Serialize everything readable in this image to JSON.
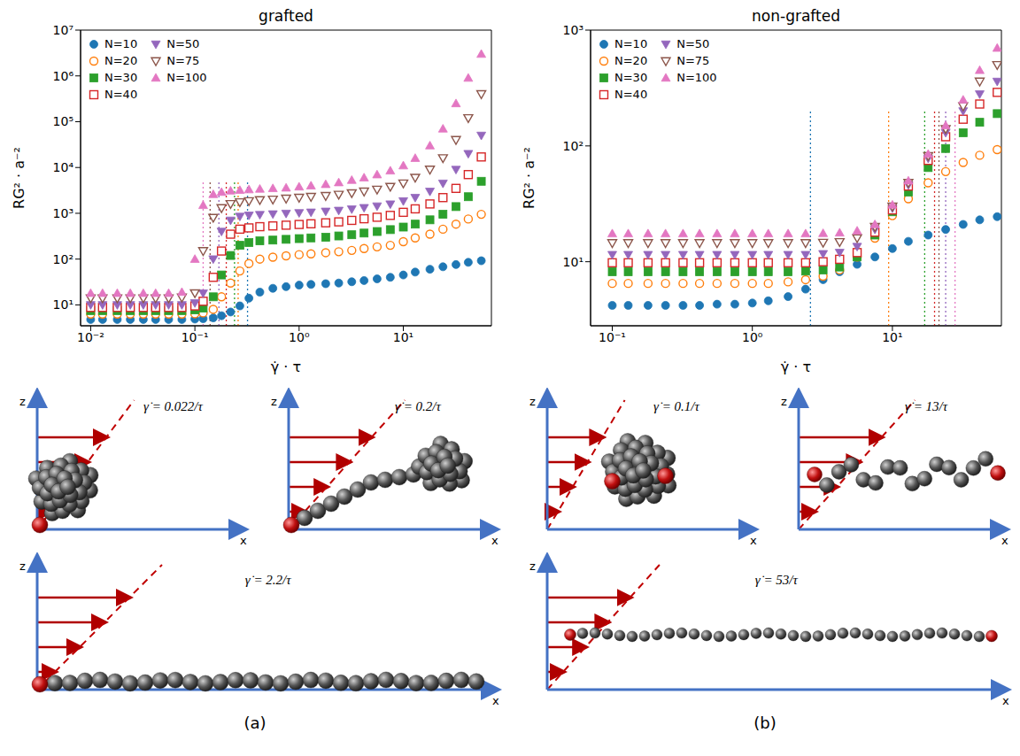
{
  "chart_data": [
    {
      "type": "scatter",
      "title": "grafted",
      "x_label": "γ̇ · τ",
      "y_label": "RG² · a⁻²",
      "log": true,
      "legend": "upper left",
      "xlim": [
        0.008,
        70
      ],
      "ylim": [
        3.5,
        10000000
      ],
      "xticks": [
        {
          "value": 0.01,
          "label": "10⁻²"
        },
        {
          "value": 0.1,
          "label": "10⁻¹"
        },
        {
          "value": 1,
          "label": "10⁰"
        },
        {
          "value": 10,
          "label": "10¹"
        }
      ],
      "yticks": [
        {
          "value": 10,
          "label": "10¹"
        },
        {
          "value": 100,
          "label": "10²"
        },
        {
          "value": 1000,
          "label": "10³"
        },
        {
          "value": 10000,
          "label": "10⁴"
        },
        {
          "value": 100000,
          "label": "10⁵"
        },
        {
          "value": 1000000,
          "label": "10⁶"
        },
        {
          "value": 10000000,
          "label": "10⁷"
        }
      ],
      "critical_line_range": [
        3.5,
        5000
      ],
      "x": [
        0.01,
        0.013,
        0.018,
        0.024,
        0.032,
        0.042,
        0.056,
        0.075,
        0.1,
        0.12,
        0.15,
        0.18,
        0.22,
        0.27,
        0.33,
        0.42,
        0.56,
        0.75,
        1,
        1.3,
        1.8,
        2.4,
        3.2,
        4.2,
        5.6,
        7.5,
        10,
        13,
        18,
        24,
        32,
        42,
        56
      ],
      "series": [
        {
          "name": "N=10",
          "color": "#1f77b4",
          "marker": "circle",
          "critical_rate": 0.32,
          "values": [
            4.8,
            4.8,
            4.8,
            4.8,
            4.8,
            4.8,
            4.8,
            4.8,
            4.9,
            5,
            5.2,
            5.8,
            7,
            9.5,
            14,
            19,
            23,
            25,
            27,
            28,
            29,
            30,
            32,
            34,
            37,
            40,
            45,
            52,
            60,
            68,
            76,
            85,
            92
          ]
        },
        {
          "name": "N=20",
          "color": "#ff7f0e",
          "marker": "circle_open",
          "critical_rate": 0.26,
          "values": [
            6.3,
            6.3,
            6.3,
            6.3,
            6.3,
            6.3,
            6.3,
            6.3,
            6.4,
            6.7,
            8,
            15,
            30,
            55,
            80,
            100,
            110,
            118,
            125,
            130,
            138,
            145,
            155,
            170,
            185,
            200,
            240,
            290,
            350,
            450,
            580,
            750,
            950
          ]
        },
        {
          "name": "N=30",
          "color": "#2ca02c",
          "marker": "square",
          "critical_rate": 0.24,
          "values": [
            7.5,
            7.5,
            7.5,
            7.5,
            7.5,
            7.5,
            7.5,
            7.5,
            7.8,
            8.5,
            15,
            45,
            120,
            200,
            230,
            250,
            260,
            270,
            280,
            290,
            300,
            320,
            340,
            370,
            400,
            440,
            500,
            580,
            720,
            950,
            1400,
            2300,
            5000
          ]
        },
        {
          "name": "N=40",
          "color": "#d62728",
          "marker": "square_open",
          "critical_rate": 0.2,
          "values": [
            8.8,
            8.8,
            8.8,
            8.8,
            8.8,
            8.8,
            8.8,
            8.8,
            9.5,
            12,
            40,
            150,
            350,
            450,
            480,
            510,
            530,
            550,
            570,
            590,
            620,
            650,
            700,
            760,
            820,
            900,
            1050,
            1250,
            1600,
            2200,
            3500,
            7000,
            17000
          ]
        },
        {
          "name": "N=50",
          "color": "#9467bd",
          "marker": "triangle_down",
          "critical_rate": 0.17,
          "values": [
            10,
            10,
            10,
            10,
            10,
            10,
            10,
            10,
            11,
            18,
            100,
            400,
            700,
            850,
            900,
            930,
            960,
            990,
            1020,
            1050,
            1100,
            1150,
            1230,
            1320,
            1430,
            1580,
            1850,
            2200,
            3000,
            4500,
            9000,
            20000,
            50000
          ]
        },
        {
          "name": "N=75",
          "color": "#8c564b",
          "marker": "triangle_down_open",
          "critical_rate": 0.14,
          "values": [
            14,
            14,
            14,
            14,
            14,
            14,
            14,
            14.5,
            18,
            150,
            800,
            1300,
            1600,
            1750,
            1850,
            1950,
            2000,
            2100,
            2200,
            2300,
            2400,
            2550,
            2750,
            3000,
            3300,
            3800,
            4500,
            6000,
            9000,
            16000,
            40000,
            120000,
            400000
          ]
        },
        {
          "name": "N=100",
          "color": "#e377c2",
          "marker": "triangle_up",
          "critical_rate": 0.12,
          "values": [
            18,
            18,
            18,
            18,
            18,
            18,
            18,
            19,
            100,
            1500,
            2600,
            2900,
            3100,
            3200,
            3300,
            3400,
            3500,
            3600,
            3800,
            4000,
            4300,
            4700,
            5300,
            6000,
            7000,
            8500,
            11000,
            16000,
            30000,
            70000,
            250000,
            900000,
            3000000
          ]
        }
      ]
    },
    {
      "type": "scatter",
      "title": "non-grafted",
      "x_label": "γ̇ · τ",
      "y_label": "RG² · a⁻²",
      "log": true,
      "legend": "upper left",
      "xlim": [
        0.07,
        60
      ],
      "ylim": [
        2.8,
        1000
      ],
      "xticks": [
        {
          "value": 0.1,
          "label": "10⁻¹"
        },
        {
          "value": 1,
          "label": "10⁰"
        },
        {
          "value": 10,
          "label": "10¹"
        }
      ],
      "yticks": [
        {
          "value": 10,
          "label": "10¹"
        },
        {
          "value": 100,
          "label": "10²"
        },
        {
          "value": 1000,
          "label": "10³"
        }
      ],
      "critical_line_range": [
        2.8,
        200
      ],
      "x": [
        0.1,
        0.13,
        0.18,
        0.24,
        0.32,
        0.42,
        0.56,
        0.75,
        1,
        1.3,
        1.8,
        2.4,
        3.2,
        4.2,
        5.6,
        7.5,
        10,
        13,
        18,
        24,
        32,
        42,
        56
      ],
      "series": [
        {
          "name": "N=10",
          "color": "#1f77b4",
          "marker": "circle",
          "critical_rate": 2.6,
          "values": [
            4.2,
            4.2,
            4.2,
            4.2,
            4.2,
            4.2,
            4.3,
            4.3,
            4.4,
            4.6,
            5,
            5.8,
            7,
            8.2,
            9.5,
            11,
            13,
            15,
            17,
            19,
            21,
            23,
            24.5
          ]
        },
        {
          "name": "N=20",
          "color": "#ff7f0e",
          "marker": "circle_open",
          "critical_rate": 9.4,
          "values": [
            6.5,
            6.5,
            6.5,
            6.5,
            6.5,
            6.5,
            6.5,
            6.5,
            6.5,
            6.5,
            6.7,
            7,
            7.5,
            8.5,
            11,
            16,
            25,
            35,
            48,
            60,
            72,
            83,
            93
          ]
        },
        {
          "name": "N=30",
          "color": "#2ca02c",
          "marker": "square",
          "critical_rate": 17,
          "values": [
            8.2,
            8.2,
            8.2,
            8.2,
            8.2,
            8.2,
            8.2,
            8.2,
            8.2,
            8.2,
            8.2,
            8.3,
            8.5,
            9,
            11,
            17,
            27,
            40,
            65,
            95,
            130,
            160,
            190
          ]
        },
        {
          "name": "N=40",
          "color": "#d62728",
          "marker": "square_open",
          "critical_rate": 20,
          "values": [
            9.8,
            9.8,
            9.8,
            9.8,
            9.8,
            9.8,
            9.8,
            9.8,
            9.8,
            9.8,
            9.8,
            9.8,
            10,
            10.5,
            12,
            18,
            28,
            45,
            75,
            120,
            170,
            230,
            290
          ]
        },
        {
          "name": "N=50",
          "color": "#9467bd",
          "marker": "triangle_down",
          "critical_rate": 24,
          "values": [
            11.5,
            11.5,
            11.5,
            11.5,
            11.5,
            11.5,
            11.5,
            11.5,
            11.5,
            11.5,
            11.5,
            11.5,
            11.7,
            12,
            13.5,
            19,
            29,
            46,
            78,
            130,
            200,
            280,
            360
          ]
        },
        {
          "name": "N=75",
          "color": "#8c564b",
          "marker": "triangle_down_open",
          "critical_rate": 21.5,
          "values": [
            14.5,
            14.5,
            14.5,
            14.5,
            14.5,
            14.5,
            14.5,
            14.5,
            14.5,
            14.5,
            14.5,
            14.5,
            14.6,
            14.8,
            16,
            20,
            30,
            48,
            82,
            140,
            220,
            360,
            500
          ]
        },
        {
          "name": "N=100",
          "color": "#e377c2",
          "marker": "triangle_up",
          "critical_rate": 28,
          "values": [
            17.5,
            17.5,
            17.5,
            17.5,
            17.5,
            17.5,
            17.5,
            17.5,
            17.5,
            17.5,
            17.5,
            17.5,
            17.6,
            17.8,
            18.5,
            21,
            31,
            50,
            85,
            150,
            250,
            450,
            700
          ]
        }
      ]
    }
  ],
  "snapshots": [
    [
      "γ̇ = 0.022/τ",
      "γ̇ = 0.2/τ",
      "γ̇ = 2.2/τ"
    ],
    [
      "γ̇ = 0.1/τ",
      "γ̇ = 13/τ",
      "γ̇ = 53/τ"
    ]
  ],
  "snapshot_axes": [
    "z",
    "x"
  ],
  "panel_labels": [
    "(a)",
    "(b)"
  ]
}
